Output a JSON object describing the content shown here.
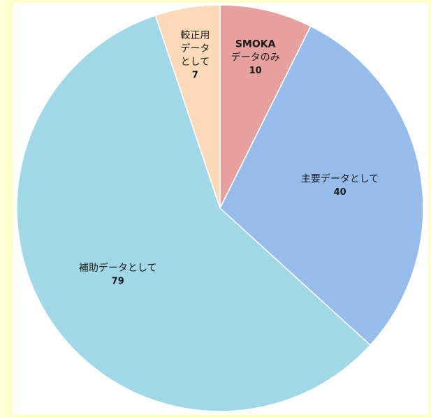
{
  "chart_data": {
    "type": "pie",
    "categories": [
      [
        "SMOKA",
        "データのみ"
      ],
      [
        "主要データとして"
      ],
      [
        "補助データとして"
      ],
      [
        "較正用",
        "データ",
        "として"
      ]
    ],
    "values": [
      10,
      40,
      79,
      7
    ],
    "colors": [
      "#e6a09e",
      "#96bcec",
      "#a1d8e7",
      "#fcdab8"
    ]
  }
}
